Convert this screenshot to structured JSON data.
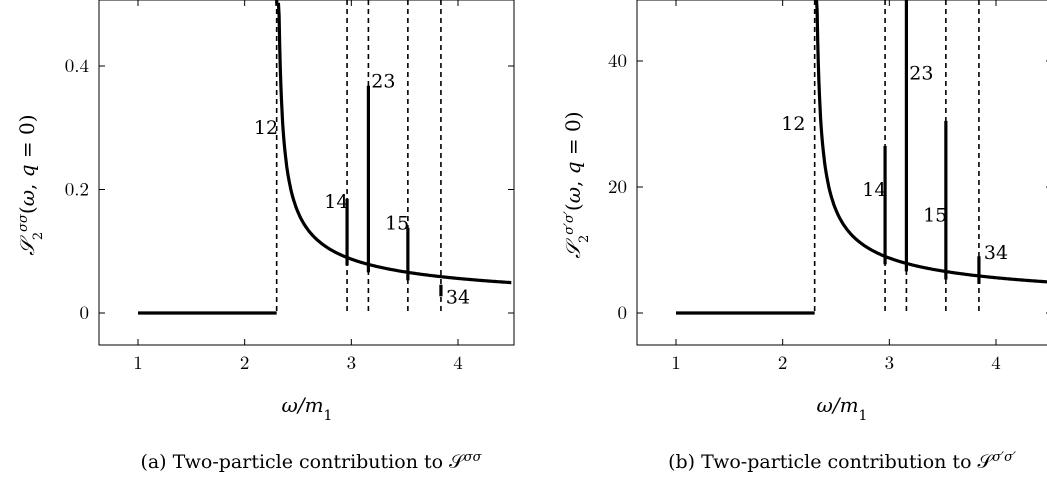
{
  "chart_data": [
    {
      "type": "line",
      "panel": "a",
      "xlabel": "ω/m₁",
      "ylabel": "S₂^σσ(ω, q = 0)",
      "xlim": [
        0.7,
        4.5
      ],
      "ylim": [
        -0.05,
        0.5
      ],
      "xticks": [
        1,
        2,
        3,
        4
      ],
      "yticks": [
        0,
        0.2,
        0.4
      ],
      "ytick_labels": [
        "0",
        "0.2",
        "0.4"
      ],
      "thresholds": [
        {
          "label": "12",
          "x": 2.3
        },
        {
          "label": "14",
          "x": 2.96
        },
        {
          "label": "23",
          "x": 3.16
        },
        {
          "label": "15",
          "x": 3.53
        },
        {
          "label": "34",
          "x": 3.84
        }
      ],
      "spikes": [
        {
          "x": 2.96,
          "y_top": 0.185
        },
        {
          "x": 3.16,
          "y_top": 0.368
        },
        {
          "x": 3.53,
          "y_top": 0.138
        },
        {
          "x": 3.84,
          "y_top": 0.027
        }
      ],
      "curve": {
        "x0": 2.3,
        "x1": 4.5,
        "zero_from": 1.0
      },
      "labels": [
        {
          "text": "12",
          "x": 2.2,
          "y": 0.3
        },
        {
          "text": "14",
          "x": 2.86,
          "y": 0.18
        },
        {
          "text": "23",
          "x": 3.3,
          "y": 0.375
        },
        {
          "text": "15",
          "x": 3.43,
          "y": 0.145
        },
        {
          "text": "34",
          "x": 4.0,
          "y": 0.025
        }
      ],
      "caption": "(a) Two-particle contribution to 𝒮^σσ"
    },
    {
      "type": "line",
      "panel": "b",
      "xlabel": "ω/m₁",
      "ylabel": "S₂^σ′σ′(ω, q = 0)",
      "xlim": [
        0.7,
        4.5
      ],
      "ylim": [
        -5,
        50
      ],
      "xticks": [
        1,
        2,
        3,
        4
      ],
      "yticks": [
        0,
        20,
        40
      ],
      "ytick_labels": [
        "0",
        "20",
        "40"
      ],
      "thresholds": [
        {
          "label": "12",
          "x": 2.3
        },
        {
          "label": "14",
          "x": 2.96
        },
        {
          "label": "23",
          "x": 3.16
        },
        {
          "label": "15",
          "x": 3.53
        },
        {
          "label": "34",
          "x": 3.84
        }
      ],
      "spikes": [
        {
          "x": 2.96,
          "y_top": 26.5
        },
        {
          "x": 3.16,
          "y_top": 50
        },
        {
          "x": 3.53,
          "y_top": 30.5
        },
        {
          "x": 3.84,
          "y_top": 9
        }
      ],
      "curve": {
        "x0": 2.3,
        "x1": 4.5,
        "zero_from": 1.0
      },
      "labels": [
        {
          "text": "12",
          "x": 2.1,
          "y": 30
        },
        {
          "text": "14",
          "x": 2.86,
          "y": 19.5
        },
        {
          "text": "23",
          "x": 3.3,
          "y": 38
        },
        {
          "text": "15",
          "x": 3.43,
          "y": 15.5
        },
        {
          "text": "34",
          "x": 4.0,
          "y": 9.5
        }
      ],
      "caption": "(b) Two-particle contribution to 𝒮^σ′σ′"
    }
  ]
}
